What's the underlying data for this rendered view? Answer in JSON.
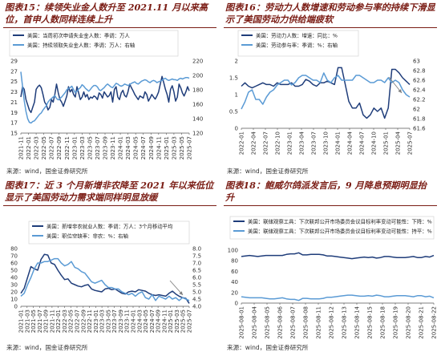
{
  "colors": {
    "title": "#7a1c14",
    "dark": "#1f3d7a",
    "light": "#5b9bd5",
    "arrow": "#7f7f7f"
  },
  "panels": [
    {
      "title": "图表15：续领失业金人数升至 2021.11 月以来高位，首申人数同样连续上升",
      "source": "来源：wind，国金证券研究所"
    },
    {
      "title": "图表16：劳动力人数增速和劳动参与率的持续下滑显示了美国劳动力供给端疲软",
      "source": "来源：wind，国金证券研究所"
    },
    {
      "title": "图表17：近 3 个月新增非农降至 2021 年以来低位显示了美国劳动力需求端同样明显放缓",
      "source": "来源：wind，国金证券研究所"
    },
    {
      "title": "图表18：鲍威尔鸽派发言后，9 月降息预期明显抬升",
      "source": "来源：wind，国金证券研究所"
    }
  ],
  "chart_data": [
    {
      "type": "line",
      "x_ticks": [
        "2021-11",
        "2022-01",
        "2022-03",
        "2022-05",
        "2022-07",
        "2022-09",
        "2022-11",
        "2023-01",
        "2023-03",
        "2023-05",
        "2023-07",
        "2023-09",
        "2023-11",
        "2024-01",
        "2024-03",
        "2024-05",
        "2024-07",
        "2024-09",
        "2024-11",
        "2025-01",
        "2025-03",
        "2025-05",
        "2025-07"
      ],
      "left_axis": {
        "ticks": [
          "15",
          "17",
          "19",
          "21",
          "23",
          "25",
          "27",
          "29"
        ],
        "range": [
          15,
          29
        ]
      },
      "right_axis": {
        "label": "",
        "ticks": [
          "120",
          "140",
          "160",
          "180",
          "200",
          "220"
        ],
        "range": [
          120,
          220
        ]
      },
      "series": [
        {
          "name": "美国：当周初次申请失业金人数：季调：万人",
          "axis": "left",
          "color": "#1f3d7a",
          "values": [
            22,
            24,
            23.5,
            21.5,
            20.5,
            19.5,
            19,
            20,
            21,
            23.5,
            24,
            24.3,
            23.8,
            22.5,
            21,
            20.5,
            19.5,
            20,
            21.5,
            21,
            22.5,
            24.5,
            22.8,
            21.5,
            21,
            20.2,
            21.2,
            22.2,
            24,
            23,
            23.5,
            22.5,
            22,
            24,
            22.8,
            21.5,
            22,
            23,
            22,
            22.5,
            21.5,
            22,
            21.8,
            22.2,
            22,
            21.5,
            22.8,
            22.5,
            21.8,
            23,
            22.5,
            22,
            22.3,
            23,
            21,
            23.5,
            24,
            22,
            21.5,
            22.8,
            23.3,
            22.3,
            22,
            23,
            24.5,
            23.8,
            23.2,
            22.5,
            22,
            21.5,
            22.2,
            22,
            21.8,
            23,
            22.5,
            21.2,
            21.8,
            22.5,
            22,
            21.6,
            22.2,
            23,
            24.5,
            26,
            24.8,
            23.5,
            22.5,
            21,
            23.5,
            24.2,
            23,
            21.2,
            22,
            24.5,
            23.8,
            22.8,
            22.2,
            23,
            24,
            23.2
          ]
        },
        {
          "name": "美国：持续领取失业金人数：季调：万人：右轴",
          "axis": "right",
          "color": "#5b9bd5",
          "values": [
            205,
            185,
            165,
            150,
            140,
            135,
            134,
            136,
            137,
            140,
            143,
            146,
            148,
            152,
            155,
            158,
            163,
            166,
            168,
            170,
            172,
            168,
            166,
            168,
            170,
            173,
            176,
            180,
            182,
            183,
            185,
            180,
            176,
            178,
            181,
            183,
            187,
            185,
            182,
            180,
            178,
            181,
            184,
            186,
            186,
            184,
            180,
            179,
            181,
            183,
            186,
            188,
            186,
            184,
            183,
            186,
            189,
            188,
            186,
            185,
            186,
            188,
            187,
            186,
            187,
            189,
            190,
            191,
            189,
            188,
            190,
            192,
            193,
            194,
            193,
            191,
            190,
            192,
            193,
            192,
            190,
            191,
            192,
            193,
            195,
            196,
            194,
            193,
            194,
            195,
            194,
            194,
            193,
            195,
            196,
            195,
            196,
            197,
            197,
            196
          ]
        }
      ]
    },
    {
      "type": "line",
      "x_ticks": [
        "2022-01",
        "2022-04",
        "2022-07",
        "2022-10",
        "2023-01",
        "2023-04",
        "2023-07",
        "2023-10",
        "2024-01",
        "2024-04",
        "2024-07",
        "2024-10",
        "2025-01",
        "2025-04",
        "2025-07"
      ],
      "left_axis": {
        "ticks": [
          "0",
          "0.5",
          "1",
          "1.5",
          "2"
        ],
        "range": [
          0,
          2
        ]
      },
      "right_axis": {
        "label": "",
        "ticks": [
          "61.6",
          "61.8",
          "62",
          "62.2",
          "62.4",
          "62.6",
          "62.8",
          "63"
        ],
        "range": [
          61.6,
          63.0
        ]
      },
      "series": [
        {
          "name": "美国：劳动力人数：增速：同比：%",
          "axis": "left",
          "color": "#1f3d7a",
          "values": [
            1.25,
            1.35,
            1.25,
            1.2,
            1.25,
            1.3,
            1.35,
            1.3,
            1.3,
            1.25,
            1.35,
            1.3,
            1.3,
            1.3,
            1.35,
            1.25,
            1.25,
            1.3,
            1.45,
            1.4,
            1.3,
            1.25,
            1.35,
            1.35,
            1.4,
            1.35,
            1.3,
            1.8,
            1.8,
            1.3,
            0.8,
            0.6,
            0.6,
            0.75,
            0.4,
            0.3,
            0.4,
            0.6,
            0.5,
            0.6,
            0.3,
            0.6,
            1.75,
            1.75,
            1.65,
            1.5,
            1.4,
            1.3
          ]
        },
        {
          "name": "美国：劳动参与率：季调：%：右轴",
          "axis": "right",
          "color": "#5b9bd5",
          "values": [
            62.0,
            62.15,
            62.35,
            62.4,
            62.2,
            62.2,
            62.1,
            62.25,
            62.35,
            62.4,
            62.5,
            62.55,
            62.6,
            62.6,
            62.5,
            62.55,
            62.65,
            62.7,
            62.7,
            62.65,
            62.6,
            62.6,
            62.55,
            62.75,
            62.6,
            62.55,
            62.65,
            62.7,
            62.6,
            62.6,
            62.6,
            62.6,
            62.7,
            62.7,
            62.65,
            62.6,
            62.55,
            62.55,
            62.6,
            62.6,
            62.55,
            62.65,
            62.55,
            62.6,
            62.55,
            62.4,
            62.3,
            62.25
          ]
        }
      ]
    },
    {
      "type": "line",
      "x_ticks": [
        "2021-01",
        "2021-03",
        "2021-05",
        "2021-07",
        "2021-09",
        "2021-11",
        "2022-01",
        "2022-03",
        "2022-05",
        "2022-07",
        "2022-09",
        "2022-11",
        "2023-01",
        "2023-03",
        "2023-05",
        "2023-07",
        "2023-09",
        "2023-11",
        "2024-01",
        "2024-03",
        "2024-05",
        "2024-07",
        "2024-09",
        "2024-11",
        "2025-01",
        "2025-03",
        "2025-05",
        "2025-07"
      ],
      "left_axis": {
        "ticks": [
          "0",
          "10",
          "20",
          "30",
          "40",
          "50",
          "60",
          "70",
          "80"
        ],
        "range": [
          0,
          80
        ]
      },
      "right_axis": {
        "label": "",
        "ticks": [
          "4.0",
          "4.5",
          "5.0",
          "5.5",
          "6.0",
          "6.5",
          "7.0",
          "7.5",
          "8.0"
        ],
        "range": [
          4.0,
          8.0
        ]
      },
      "series": [
        {
          "name": "美国：新增非农就业人数：季调：万人：3个月移动平均",
          "axis": "left",
          "color": "#1f3d7a",
          "values": [
            18,
            25,
            40,
            55,
            52,
            50,
            65,
            72,
            71,
            60,
            58,
            50,
            43,
            37,
            38,
            32,
            30,
            28,
            27,
            29,
            30,
            24,
            22,
            21,
            20,
            24,
            25,
            23,
            24,
            21,
            18,
            17,
            20,
            21,
            20,
            23,
            22,
            21,
            18,
            16,
            15,
            16,
            15,
            14,
            18,
            21,
            17,
            14,
            12,
            11,
            4
          ]
        },
        {
          "name": "美国：职位空缺率：非农：%：右轴",
          "axis": "right",
          "color": "#5b9bd5",
          "values": [
            4.7,
            4.9,
            5.5,
            6.0,
            6.6,
            7.0,
            7.0,
            7.1,
            7.1,
            7.2,
            7.3,
            7.3,
            7.0,
            6.8,
            6.9,
            7.1,
            6.7,
            6.6,
            6.4,
            6.3,
            6.0,
            5.7,
            5.6,
            5.7,
            5.8,
            5.5,
            5.3,
            5.3,
            5.2,
            5.2,
            5.0,
            4.9,
            4.8,
            4.9,
            4.7,
            4.9,
            5.0,
            4.6,
            4.5,
            4.8,
            4.4,
            4.7,
            4.6,
            4.5,
            4.7,
            4.5,
            4.6,
            4.4,
            4.6,
            4.5,
            4.4
          ]
        }
      ]
    },
    {
      "type": "line",
      "x_ticks": [
        "2025-08-01",
        "2025-08-04",
        "2025-08-05",
        "2025-08-06",
        "2025-08-07",
        "2025-08-08",
        "2025-08-11",
        "2025-08-12",
        "2025-08-13",
        "2025-08-14",
        "2025-08-15",
        "2025-08-18",
        "2025-08-19",
        "2025-08-20",
        "2025-08-21",
        "2025-08-22"
      ],
      "left_axis": {
        "ticks": [
          "0",
          "20",
          "40",
          "60",
          "80",
          "100"
        ],
        "range": [
          0,
          100
        ]
      },
      "series": [
        {
          "name": "美国：联储观察工具：下次联邦公开市场委员会议目标利率变动可能性：下降：%",
          "color": "#1f3d7a",
          "values": [
            88,
            89,
            90,
            89,
            88,
            89,
            90,
            90,
            90,
            90,
            90,
            92,
            93,
            93,
            95,
            91,
            91,
            92,
            92,
            92,
            91,
            89,
            89,
            88,
            87,
            86,
            85,
            84,
            85,
            86,
            87,
            86,
            87,
            85,
            86,
            88,
            88,
            87,
            86,
            86,
            86,
            87,
            88,
            86,
            86,
            88,
            87,
            90
          ]
        },
        {
          "name": "美国：联储观察工具：下次联邦公开市场委员会议目标利率变动可能性：持平：%",
          "color": "#5b9bd5",
          "values": [
            12,
            11,
            10,
            10,
            10,
            10,
            9,
            8,
            8,
            9,
            10,
            8,
            7,
            7,
            5,
            9,
            9,
            8,
            8,
            8,
            9,
            11,
            11,
            12,
            13,
            14,
            15,
            15,
            14,
            13,
            13,
            14,
            13,
            15,
            14,
            12,
            12,
            13,
            14,
            14,
            14,
            13,
            12,
            14,
            14,
            12,
            13,
            10
          ]
        }
      ]
    }
  ]
}
